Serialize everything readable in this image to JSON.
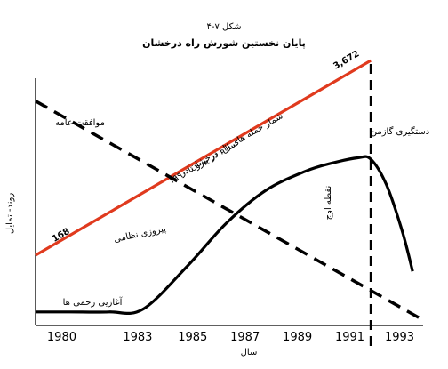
{
  "chart_data": {
    "type": "line",
    "title": "پایان نخستین شورش راه درخشان",
    "subtitle": "شکل ۷-۴",
    "xlabel": "سال",
    "ylabel": "روند- تمایل",
    "x_ticks": [
      "1980",
      "1983",
      "1985",
      "1987",
      "1989",
      "1991",
      "1993"
    ],
    "xlim": [
      1979.2,
      1994.0
    ],
    "ylim": [
      0,
      1
    ],
    "grid": false,
    "legend": "none",
    "series": [
      {
        "name": "شمار حمله های راه درخشان در سال، در پیرو تا ۱۹۹۰",
        "color": "#e03a1e",
        "style": "solid",
        "x": [
          1979.2,
          1992.0
        ],
        "y": [
          0.26,
          0.98
        ],
        "labels": {
          "start": "168",
          "end": "3,672"
        }
      },
      {
        "name": "موافقت عامه",
        "color": "#000000",
        "style": "dashed",
        "x": [
          1979.2,
          1994.0
        ],
        "y": [
          0.83,
          0.02
        ]
      },
      {
        "name": "پیروزی نظامی",
        "color": "#000000",
        "style": "solid",
        "x": [
          1979.2,
          1980.5,
          1982.0,
          1983.3,
          1985.0,
          1986.5,
          1988.0,
          1989.5,
          1990.5,
          1991.5,
          1992.0,
          1992.6,
          1993.2,
          1993.6
        ],
        "y": [
          0.05,
          0.05,
          0.05,
          0.06,
          0.22,
          0.38,
          0.5,
          0.57,
          0.6,
          0.62,
          0.615,
          0.52,
          0.35,
          0.2
        ]
      }
    ],
    "vline": {
      "x": 1992.0,
      "style": "dashed",
      "label": "نقطه اوج"
    },
    "annotations": {
      "attack_label": "شمار حمله های راه درخشان در",
      "attack_label_2": "سال، در پیرو تا ۱۹۹۰",
      "public_support": "موافقت عامه",
      "military_victory": "پیروزی نظامی",
      "beginning": "آغازیی رحمی ها",
      "capture": "دستگیری گازمن",
      "peak": "نقطه اوج"
    }
  }
}
